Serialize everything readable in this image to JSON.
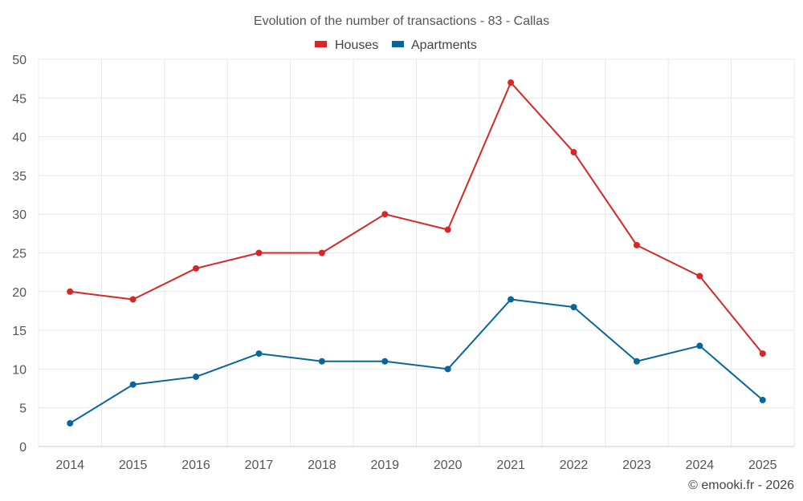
{
  "chart_data": {
    "type": "line",
    "title": "Evolution of the number of transactions - 83 - Callas",
    "categories": [
      "2014",
      "2015",
      "2016",
      "2017",
      "2018",
      "2019",
      "2020",
      "2021",
      "2022",
      "2023",
      "2024",
      "2025"
    ],
    "series": [
      {
        "name": "Houses",
        "color": "#d62728",
        "values": [
          20,
          19,
          23,
          25,
          25,
          30,
          28,
          47,
          38,
          26,
          22,
          12
        ]
      },
      {
        "name": "Apartments",
        "color": "#08669b",
        "values": [
          3,
          8,
          9,
          12,
          11,
          11,
          10,
          19,
          18,
          11,
          13,
          6
        ]
      }
    ],
    "ylim": [
      0,
      50
    ],
    "yticks": [
      0,
      5,
      10,
      15,
      20,
      25,
      30,
      35,
      40,
      45,
      50
    ],
    "grid": true,
    "legend_position": "top-center"
  },
  "credit": "© emooki.fr - 2026"
}
